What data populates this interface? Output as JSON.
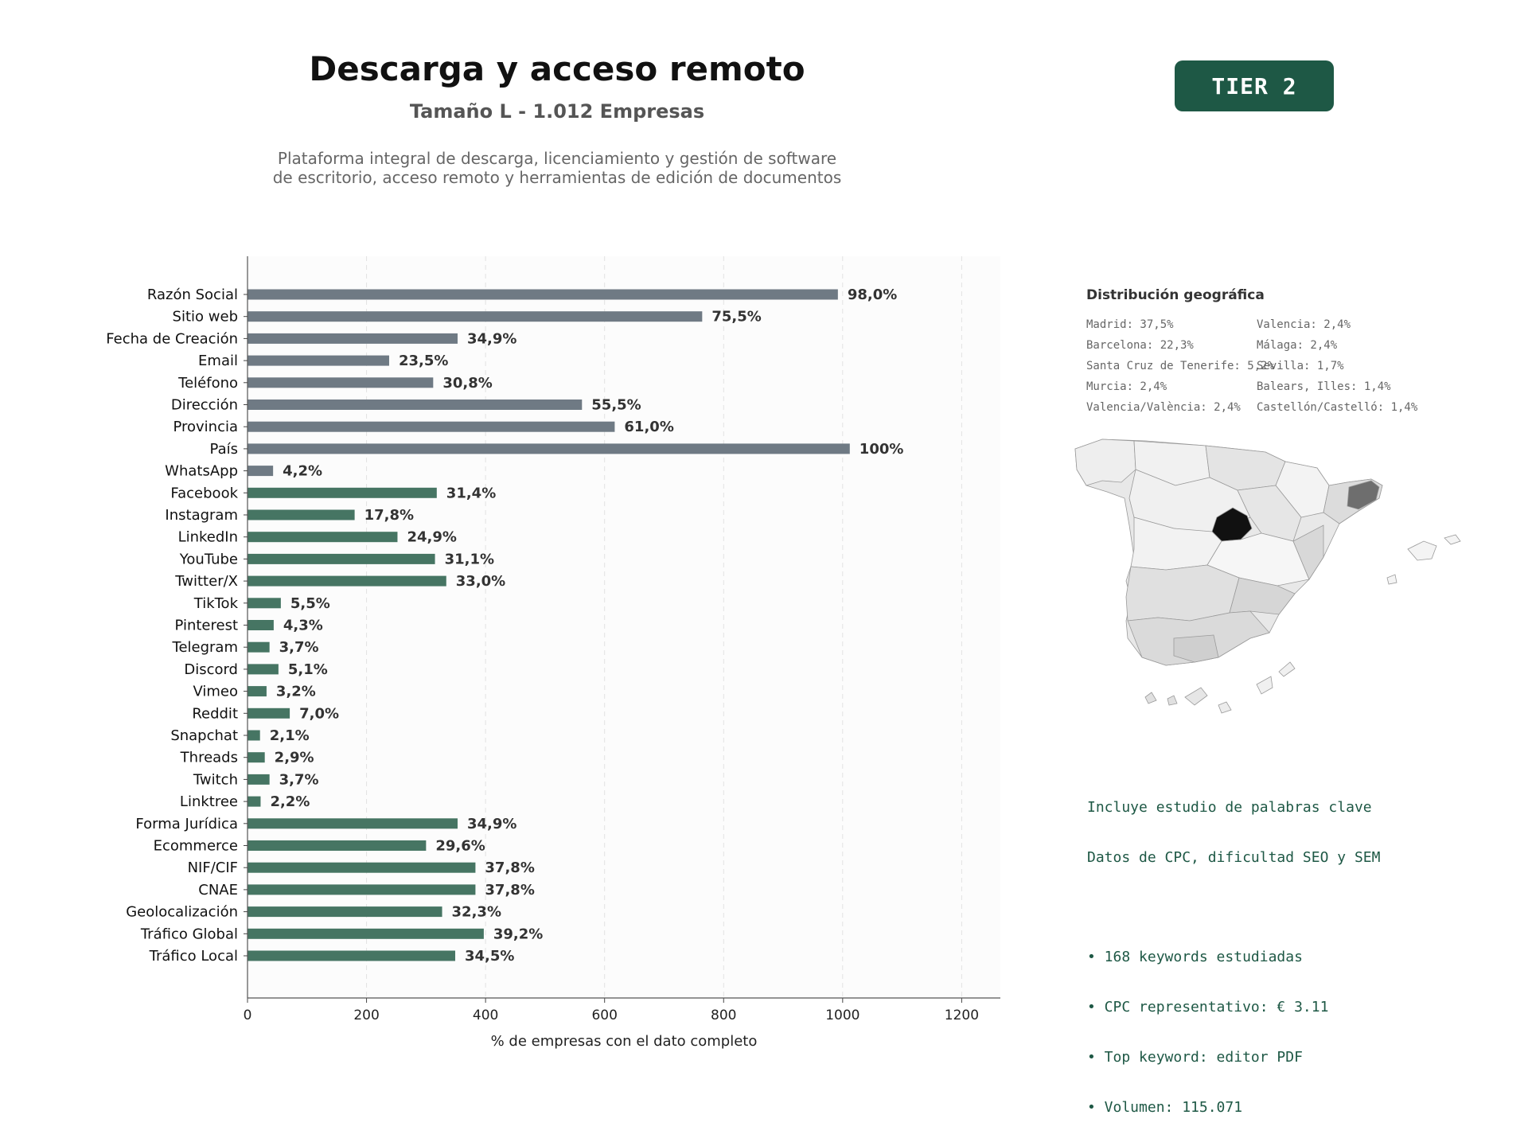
{
  "header": {
    "title": "Descarga y acceso remoto",
    "subtitle": "Tamaño L - 1.012 Empresas",
    "description_lines": [
      "Plataforma integral de descarga, licenciamiento y gestión de software",
      "de escritorio, acceso remoto y herramientas de edición de documentos"
    ],
    "tier_badge": "TIER 2"
  },
  "colors": {
    "gray_bar": "#6f7a84",
    "green_bar": "#467563",
    "accent": "#1e5845"
  },
  "chart_data": {
    "type": "bar",
    "orientation": "horizontal",
    "xlabel": "% de empresas con el dato completo",
    "xlim": [
      0,
      1265
    ],
    "xticks": [
      0,
      200,
      400,
      600,
      800,
      1000,
      1200
    ],
    "grid": "vertical dashed",
    "categories": [
      "Razón Social",
      "Sitio web",
      "Fecha de Creación",
      "Email",
      "Teléfono",
      "Dirección",
      "Provincia",
      "País",
      "WhatsApp",
      "Facebook",
      "Instagram",
      "LinkedIn",
      "YouTube",
      "Twitter/X",
      "TikTok",
      "Pinterest",
      "Telegram",
      "Discord",
      "Vimeo",
      "Reddit",
      "Snapchat",
      "Threads",
      "Twitch",
      "Linktree",
      "Forma Jurídica",
      "Ecommerce",
      "NIF/CIF",
      "CNAE",
      "Geolocalización",
      "Tráfico Global",
      "Tráfico Local"
    ],
    "values": [
      992,
      764,
      353,
      238,
      312,
      562,
      617,
      1012,
      43,
      318,
      180,
      252,
      315,
      334,
      56,
      44,
      37,
      52,
      32,
      71,
      21,
      29,
      37,
      22,
      353,
      300,
      383,
      383,
      327,
      397,
      349
    ],
    "labels": [
      "98,0%",
      "75,5%",
      "34,9%",
      "23,5%",
      "30,8%",
      "55,5%",
      "61,0%",
      "100%",
      "4,2%",
      "31,4%",
      "17,8%",
      "24,9%",
      "31,1%",
      "33,0%",
      "5,5%",
      "4,3%",
      "3,7%",
      "5,1%",
      "3,2%",
      "7,0%",
      "2,1%",
      "2,9%",
      "3,7%",
      "2,2%",
      "34,9%",
      "29,6%",
      "37,8%",
      "37,8%",
      "32,3%",
      "39,2%",
      "34,5%"
    ],
    "bar_colors": [
      "gray",
      "gray",
      "gray",
      "gray",
      "gray",
      "gray",
      "gray",
      "gray",
      "gray",
      "green",
      "green",
      "green",
      "green",
      "green",
      "green",
      "green",
      "green",
      "green",
      "green",
      "green",
      "green",
      "green",
      "green",
      "green",
      "green",
      "green",
      "green",
      "green",
      "green",
      "green",
      "green"
    ]
  },
  "geo": {
    "title": "Distribución geográfica",
    "col1": [
      "Madrid: 37,5%",
      "Barcelona: 22,3%",
      "Santa Cruz de Tenerife: 5,2%",
      "Murcia: 2,4%",
      "Valencia/València: 2,4%"
    ],
    "col2": [
      "Valencia: 2,4%",
      "Málaga: 2,4%",
      "Sevilla: 1,7%",
      "Balears, Illes: 1,4%",
      "Castellón/Castelló: 1,4%"
    ]
  },
  "keywords": {
    "line1": "Incluye estudio de palabras clave",
    "line2": "Datos de CPC, dificultad SEO y SEM",
    "bullets": [
      "• 168 keywords estudiadas",
      "• CPC representativo: € 3.11",
      "• Top keyword: editor PDF",
      "• Volumen: 115.071"
    ]
  }
}
